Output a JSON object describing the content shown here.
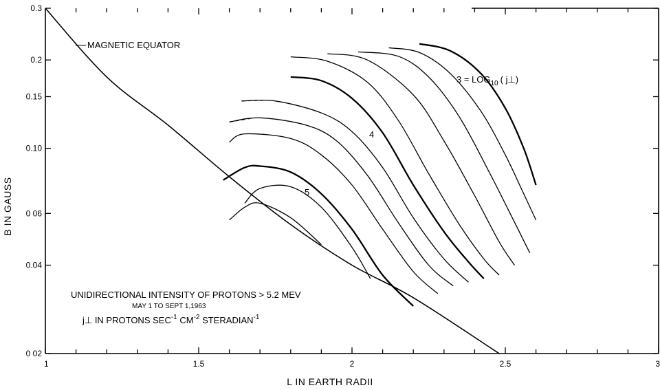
{
  "chart_data": {
    "type": "line",
    "xlabel": "L IN EARTH RADII",
    "ylabel": "B IN GAUSS",
    "xlim": [
      1,
      3
    ],
    "ylim": [
      0.02,
      0.3
    ],
    "y_scale": "log",
    "x_tick_labels": [
      "1",
      "1.5",
      "2",
      "2.5",
      "3"
    ],
    "y_ticks": [
      0.3,
      0.2,
      0.15,
      0.1,
      0.06,
      0.04,
      0.02
    ],
    "y_tick_labels": [
      "0.3",
      "0.2",
      "0.15",
      "0.10",
      "0 06",
      "0.04",
      "0 02"
    ],
    "grid": false,
    "annotations": {
      "equator_label": "MAGNETIC EQUATOR",
      "legend_line": "3 = LOG",
      "legend_sub": "10",
      "legend_rest": "( j⊥)",
      "label_4": "4",
      "label_5": "5",
      "note_title": "UNIDIRECTIONAL INTENSITY OF PROTONS > 5.2 MEV",
      "note_dates": "MAY 1 TO SEPT 1,1963",
      "note_units_a": "j⊥ IN PROTONS SEC",
      "note_units_b": " CM",
      "note_units_c": " STERADIAN",
      "sup_1": "-1",
      "sup_2": "-2",
      "sup_3": "-1"
    },
    "equator": {
      "name": "MAGNETIC EQUATOR",
      "x": [
        1.0,
        1.2,
        1.4,
        1.6,
        1.8,
        2.0,
        2.2,
        2.48
      ],
      "y": [
        0.3,
        0.175,
        0.12,
        0.08,
        0.055,
        0.04,
        0.031,
        0.02
      ]
    },
    "series": [
      {
        "x": [
          1.6,
          1.65,
          1.7,
          1.8,
          1.9
        ],
        "y": [
          0.057,
          0.063,
          0.065,
          0.058,
          0.047
        ]
      },
      {
        "x": [
          1.65,
          1.7,
          1.8,
          1.9,
          2.0,
          2.06
        ],
        "y": [
          0.065,
          0.073,
          0.074,
          0.063,
          0.046,
          0.036
        ]
      },
      {
        "x": [
          1.58,
          1.65,
          1.7,
          1.8,
          1.9,
          2.0,
          2.1,
          2.2
        ],
        "y": [
          0.078,
          0.086,
          0.087,
          0.083,
          0.07,
          0.053,
          0.037,
          0.029
        ],
        "bold": true
      },
      {
        "x": [
          1.6,
          1.65,
          1.8,
          1.9,
          2.0,
          2.1,
          2.2,
          2.28
        ],
        "y": [
          0.105,
          0.112,
          0.108,
          0.095,
          0.075,
          0.053,
          0.038,
          0.032
        ]
      },
      {
        "x": [
          1.6,
          1.7,
          1.85,
          1.95,
          2.05,
          2.15,
          2.25,
          2.33
        ],
        "y": [
          0.123,
          0.127,
          0.12,
          0.106,
          0.081,
          0.056,
          0.04,
          0.034
        ]
      },
      {
        "x": [
          1.64,
          1.75,
          1.9,
          2.0,
          2.1,
          2.2,
          2.3,
          2.38
        ],
        "y": [
          0.145,
          0.145,
          0.132,
          0.114,
          0.086,
          0.058,
          0.042,
          0.035
        ]
      },
      {
        "x": [
          1.8,
          1.9,
          2.0,
          2.1,
          2.2,
          2.3,
          2.38,
          2.43
        ],
        "y": [
          0.175,
          0.17,
          0.148,
          0.113,
          0.075,
          0.052,
          0.041,
          0.036
        ],
        "bold": true
      },
      {
        "x": [
          1.8,
          1.92,
          2.05,
          2.15,
          2.25,
          2.35,
          2.43,
          2.48
        ],
        "y": [
          0.205,
          0.198,
          0.168,
          0.125,
          0.082,
          0.055,
          0.042,
          0.037
        ]
      },
      {
        "x": [
          1.92,
          2.05,
          2.2,
          2.3,
          2.4,
          2.48,
          2.53
        ],
        "y": [
          0.21,
          0.2,
          0.152,
          0.106,
          0.069,
          0.048,
          0.04
        ]
      },
      {
        "x": [
          2.02,
          2.15,
          2.25,
          2.35,
          2.45,
          2.53,
          2.58
        ],
        "y": [
          0.213,
          0.206,
          0.175,
          0.128,
          0.082,
          0.056,
          0.044
        ]
      },
      {
        "x": [
          2.12,
          2.22,
          2.32,
          2.42,
          2.5,
          2.56,
          2.6
        ],
        "y": [
          0.22,
          0.212,
          0.18,
          0.134,
          0.095,
          0.07,
          0.057
        ]
      },
      {
        "x": [
          2.22,
          2.32,
          2.42,
          2.5,
          2.56,
          2.6
        ],
        "y": [
          0.227,
          0.215,
          0.18,
          0.137,
          0.1,
          0.075
        ],
        "bold": true
      }
    ],
    "dashed_extensions": [
      {
        "x": [
          1.64,
          1.72
        ],
        "y": [
          0.145,
          0.146
        ]
      },
      {
        "x": [
          1.6,
          1.68
        ],
        "y": [
          0.123,
          0.127
        ]
      }
    ]
  }
}
